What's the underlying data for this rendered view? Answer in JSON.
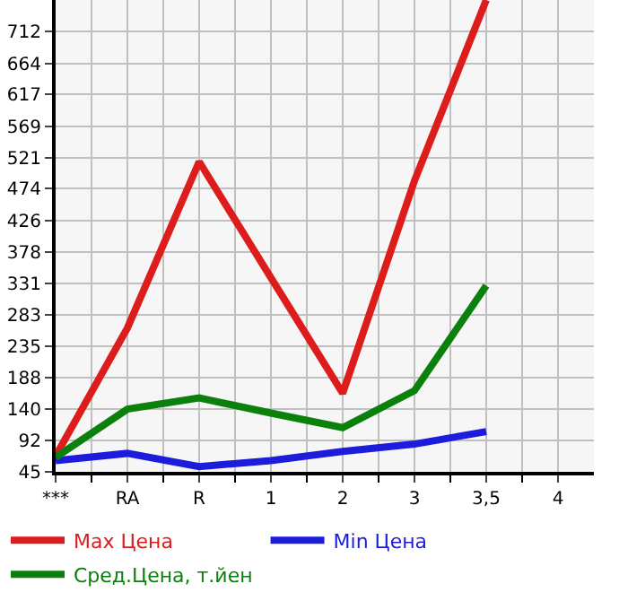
{
  "chart_data": {
    "type": "line",
    "categories": [
      "***",
      "RA",
      "R",
      "1",
      "2",
      "3",
      "3,5",
      "4"
    ],
    "series": [
      {
        "name": "Max Цена",
        "color": "#dd1c1c",
        "values": [
          69,
          263,
          515,
          339,
          164,
          486,
          760,
          null
        ]
      },
      {
        "name": "Min Цена",
        "color": "#1c1cdd",
        "values": [
          62,
          73,
          53,
          62,
          76,
          87,
          106,
          null
        ]
      },
      {
        "name": "Сред.Цена, т.йен",
        "color": "#0c800c",
        "values": [
          67,
          140,
          157,
          134,
          112,
          168,
          327,
          null
        ]
      }
    ],
    "ylim": [
      45,
      760
    ],
    "yticks": [
      45,
      92,
      140,
      188,
      235,
      283,
      331,
      378,
      426,
      474,
      521,
      569,
      617,
      664,
      712
    ],
    "grid": true,
    "legend": "bottom",
    "marker": "none",
    "line_style": "solid"
  }
}
